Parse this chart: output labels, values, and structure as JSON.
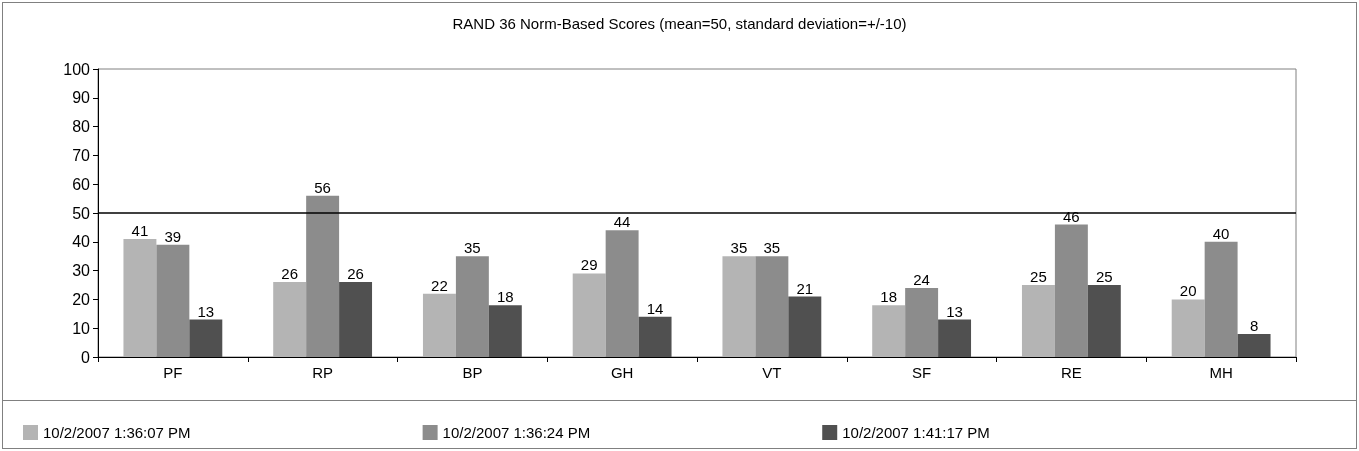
{
  "chart_data": {
    "type": "bar",
    "title": "RAND 36 Norm-Based Scores (mean=50, standard deviation=+/-10)",
    "categories": [
      "PF",
      "RP",
      "BP",
      "GH",
      "VT",
      "SF",
      "RE",
      "MH"
    ],
    "series": [
      {
        "name": "10/2/2007 1:36:07 PM",
        "color": "#b4b4b4",
        "values": [
          41,
          26,
          22,
          29,
          35,
          18,
          25,
          20
        ]
      },
      {
        "name": "10/2/2007 1:36:24 PM",
        "color": "#8c8c8c",
        "values": [
          39,
          56,
          35,
          44,
          35,
          24,
          46,
          40
        ]
      },
      {
        "name": "10/2/2007 1:41:17 PM",
        "color": "#505050",
        "values": [
          13,
          26,
          18,
          14,
          21,
          13,
          25,
          8
        ]
      }
    ],
    "ylim": [
      0,
      100
    ],
    "yticks": [
      0,
      10,
      20,
      30,
      40,
      50,
      60,
      70,
      80,
      90,
      100
    ],
    "ref_lines": [
      {
        "axis": "y",
        "value": 50,
        "color": "#000000"
      }
    ],
    "data_labels": true,
    "grid": false,
    "legend": "bottom"
  }
}
